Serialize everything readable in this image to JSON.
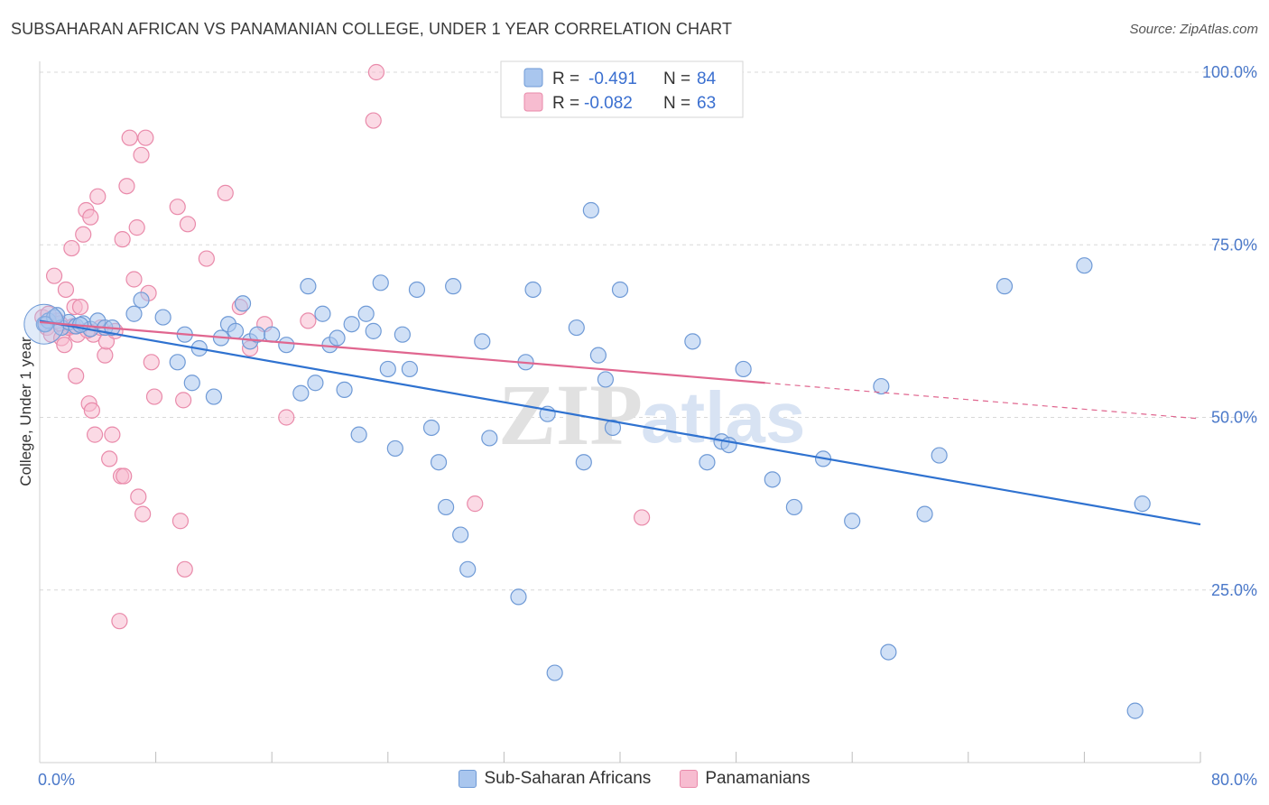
{
  "title": "SUBSAHARAN AFRICAN VS PANAMANIAN COLLEGE, UNDER 1 YEAR CORRELATION CHART",
  "source": "Source: ZipAtlas.com",
  "watermark": {
    "zip": "ZIP",
    "atlas": "atlas"
  },
  "colors": {
    "blue_fill": "#a9c6ee",
    "blue_stroke": "#6f9ad6",
    "blue_line": "#2f72d0",
    "pink_fill": "#f7bcd0",
    "pink_stroke": "#e98aaa",
    "pink_line": "#e0668f",
    "accent_text": "#3a6fd0",
    "grid": "#d8d8d8"
  },
  "legend_top": {
    "rows": [
      {
        "r_label": "R = ",
        "r_value": "-0.491",
        "n_label": "N = ",
        "n_value": "84",
        "series": "blue"
      },
      {
        "r_label": "R = ",
        "r_value": "-0.082",
        "n_label": "N = ",
        "n_value": "63",
        "series": "pink"
      }
    ]
  },
  "chart_data": {
    "type": "scatter",
    "title": "SUBSAHARAN AFRICAN VS PANAMANIAN COLLEGE, UNDER 1 YEAR CORRELATION CHART",
    "xlabel": "",
    "ylabel": "College, Under 1 year",
    "xlim": [
      0,
      80
    ],
    "ylim": [
      0,
      100
    ],
    "x_tick_labels": [
      "0.0%",
      "80.0%"
    ],
    "y_ticks": [
      25,
      50,
      75,
      100
    ],
    "y_tick_labels": [
      "25.0%",
      "50.0%",
      "75.0%",
      "100.0%"
    ],
    "legend_position": "bottom-center",
    "series": [
      {
        "name": "Sub-Saharan Africans",
        "color": "blue",
        "R": -0.491,
        "N": 84,
        "trend": {
          "x0": 0,
          "y0": 64.0,
          "x1": 80,
          "y1": 34.5
        },
        "points": [
          [
            0.3,
            63.5
          ],
          [
            0.6,
            64.0
          ],
          [
            1.0,
            64.5
          ],
          [
            1.5,
            63.0
          ],
          [
            2.0,
            63.8
          ],
          [
            2.5,
            63.2
          ],
          [
            3.0,
            63.6
          ],
          [
            3.5,
            62.8
          ],
          [
            4.0,
            64.0
          ],
          [
            4.5,
            63.0
          ],
          [
            5.0,
            63.0
          ],
          [
            6.5,
            65.0
          ],
          [
            7.0,
            67.0
          ],
          [
            8.5,
            64.5
          ],
          [
            9.5,
            58.0
          ],
          [
            10.0,
            62.0
          ],
          [
            10.5,
            55.0
          ],
          [
            11.0,
            60.0
          ],
          [
            12.0,
            53.0
          ],
          [
            12.5,
            61.5
          ],
          [
            13.0,
            63.5
          ],
          [
            13.5,
            62.5
          ],
          [
            14.0,
            66.5
          ],
          [
            14.5,
            61.0
          ],
          [
            15.0,
            62.0
          ],
          [
            16.0,
            62.0
          ],
          [
            17.0,
            60.5
          ],
          [
            18.0,
            53.5
          ],
          [
            18.5,
            69.0
          ],
          [
            19.0,
            55.0
          ],
          [
            19.5,
            65.0
          ],
          [
            20.0,
            60.5
          ],
          [
            20.5,
            61.5
          ],
          [
            21.0,
            54.0
          ],
          [
            21.5,
            63.5
          ],
          [
            22.0,
            47.5
          ],
          [
            22.5,
            65.0
          ],
          [
            23.0,
            62.5
          ],
          [
            23.5,
            69.5
          ],
          [
            24.0,
            57.0
          ],
          [
            24.5,
            45.5
          ],
          [
            25.0,
            62.0
          ],
          [
            25.5,
            57.0
          ],
          [
            26.0,
            68.5
          ],
          [
            27.0,
            48.5
          ],
          [
            27.5,
            43.5
          ],
          [
            28.0,
            37.0
          ],
          [
            28.5,
            69.0
          ],
          [
            29.0,
            33.0
          ],
          [
            29.5,
            28.0
          ],
          [
            30.5,
            61.0
          ],
          [
            31.0,
            47.0
          ],
          [
            33.0,
            24.0
          ],
          [
            33.5,
            58.0
          ],
          [
            34.0,
            68.5
          ],
          [
            35.0,
            50.5
          ],
          [
            35.5,
            13.0
          ],
          [
            37.0,
            63.0
          ],
          [
            37.5,
            43.5
          ],
          [
            38.0,
            80.0
          ],
          [
            38.5,
            59.0
          ],
          [
            39.0,
            55.5
          ],
          [
            39.5,
            48.5
          ],
          [
            40.0,
            68.5
          ],
          [
            45.0,
            61.0
          ],
          [
            46.0,
            43.5
          ],
          [
            47.0,
            46.5
          ],
          [
            47.5,
            46.0
          ],
          [
            48.5,
            57.0
          ],
          [
            50.5,
            41.0
          ],
          [
            52.0,
            37.0
          ],
          [
            54.0,
            44.0
          ],
          [
            56.0,
            35.0
          ],
          [
            58.0,
            54.5
          ],
          [
            58.5,
            16.0
          ],
          [
            61.0,
            36.0
          ],
          [
            62.0,
            44.5
          ],
          [
            66.5,
            69.0
          ],
          [
            72.0,
            72.0
          ],
          [
            75.5,
            7.5
          ],
          [
            76.0,
            37.5
          ],
          [
            0.4,
            63.5
          ],
          [
            1.2,
            64.8
          ],
          [
            2.8,
            63.4
          ]
        ]
      },
      {
        "name": "Panamanians",
        "color": "pink",
        "R": -0.082,
        "N": 63,
        "trend": {
          "x0": 0,
          "y0": 63.8,
          "x1": 50,
          "y1": 55.0,
          "dashed_to_x": 80,
          "dashed_to_y": 49.8
        },
        "points": [
          [
            0.2,
            64.5
          ],
          [
            0.5,
            63.0
          ],
          [
            0.8,
            62.0
          ],
          [
            1.0,
            70.5
          ],
          [
            1.2,
            64.0
          ],
          [
            1.5,
            61.5
          ],
          [
            1.7,
            60.5
          ],
          [
            1.8,
            68.5
          ],
          [
            2.0,
            63.0
          ],
          [
            2.2,
            74.5
          ],
          [
            2.4,
            66.0
          ],
          [
            2.5,
            56.0
          ],
          [
            2.6,
            62.0
          ],
          [
            2.8,
            66.0
          ],
          [
            3.0,
            76.5
          ],
          [
            3.2,
            80.0
          ],
          [
            3.4,
            52.0
          ],
          [
            3.5,
            79.0
          ],
          [
            3.6,
            51.0
          ],
          [
            3.7,
            62.0
          ],
          [
            3.8,
            47.5
          ],
          [
            4.0,
            82.0
          ],
          [
            4.2,
            63.0
          ],
          [
            4.5,
            59.0
          ],
          [
            4.6,
            61.0
          ],
          [
            4.8,
            44.0
          ],
          [
            5.0,
            47.5
          ],
          [
            5.2,
            62.5
          ],
          [
            5.5,
            20.5
          ],
          [
            5.6,
            41.5
          ],
          [
            5.7,
            75.8
          ],
          [
            5.8,
            41.5
          ],
          [
            6.0,
            83.5
          ],
          [
            6.2,
            90.5
          ],
          [
            6.5,
            70.0
          ],
          [
            6.7,
            77.5
          ],
          [
            6.8,
            38.5
          ],
          [
            7.0,
            88.0
          ],
          [
            7.1,
            36.0
          ],
          [
            7.3,
            90.5
          ],
          [
            7.5,
            68.0
          ],
          [
            7.7,
            58.0
          ],
          [
            7.9,
            53.0
          ],
          [
            9.5,
            80.5
          ],
          [
            9.7,
            35.0
          ],
          [
            9.9,
            52.5
          ],
          [
            10.0,
            28.0
          ],
          [
            10.2,
            78.0
          ],
          [
            11.5,
            73.0
          ],
          [
            12.8,
            82.5
          ],
          [
            13.8,
            66.0
          ],
          [
            14.5,
            60.0
          ],
          [
            15.5,
            63.5
          ],
          [
            17.0,
            50.0
          ],
          [
            18.5,
            64.0
          ],
          [
            23.0,
            93.0
          ],
          [
            23.2,
            100.0
          ],
          [
            30.0,
            37.5
          ],
          [
            41.5,
            35.5
          ],
          [
            0.6,
            65.0
          ],
          [
            1.4,
            63.6
          ],
          [
            2.3,
            63.2
          ],
          [
            3.3,
            62.6
          ]
        ]
      }
    ]
  }
}
